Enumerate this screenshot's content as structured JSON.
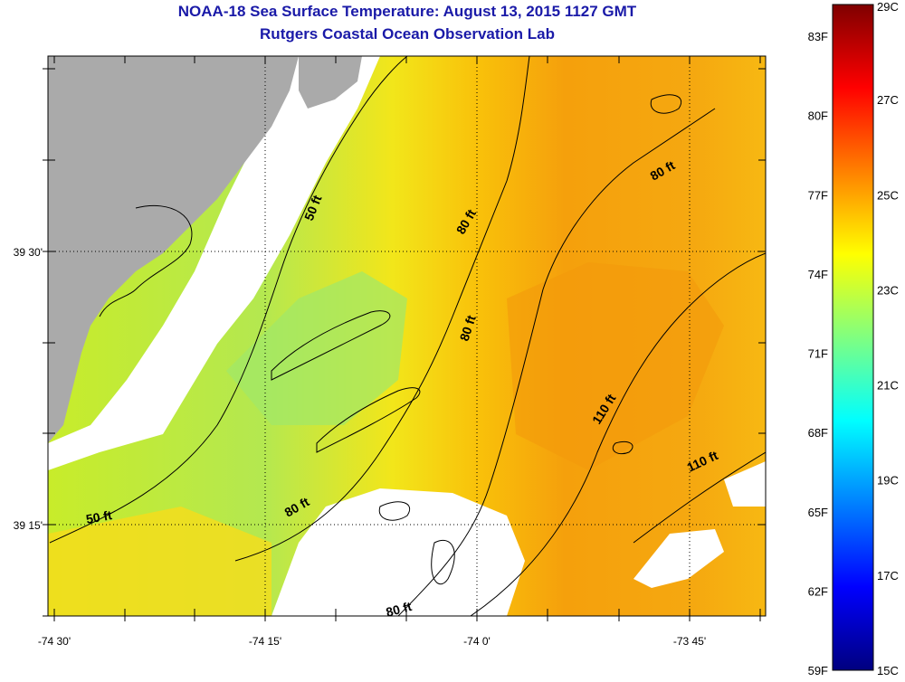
{
  "header": {
    "title": "NOAA-18 Sea Surface Temperature:  August 13, 2015 1127 GMT",
    "subtitle": "Rutgers Coastal Ocean Observation Lab"
  },
  "map": {
    "lat_labels": [
      "39 30'",
      "39 15'"
    ],
    "lon_labels": [
      "-74 30'",
      "-74 15'",
      "-74 0'",
      "-73 45'"
    ],
    "depth_labels": [
      "50 ft",
      "50 ft",
      "80 ft",
      "80 ft",
      "80 ft",
      "80 ft",
      "80 ft",
      "110 ft",
      "110 ft"
    ],
    "colors": {
      "land": "#aaaaaa",
      "nodata": "#ffffff",
      "contour": "#000000",
      "grid": "#000000"
    }
  },
  "colorbar": {
    "f_labels": [
      "83F",
      "80F",
      "77F",
      "74F",
      "71F",
      "68F",
      "65F",
      "62F",
      "59F"
    ],
    "c_labels": [
      "29C",
      "27C",
      "25C",
      "23C",
      "21C",
      "19C",
      "17C",
      "15C"
    ],
    "range_c": [
      15,
      29
    ],
    "range_f": [
      59,
      84.2
    ],
    "stops": [
      "#00007f",
      "#0000ff",
      "#0080ff",
      "#00ffff",
      "#80ff80",
      "#ffff00",
      "#ff8000",
      "#ff0000",
      "#7f0000"
    ]
  }
}
